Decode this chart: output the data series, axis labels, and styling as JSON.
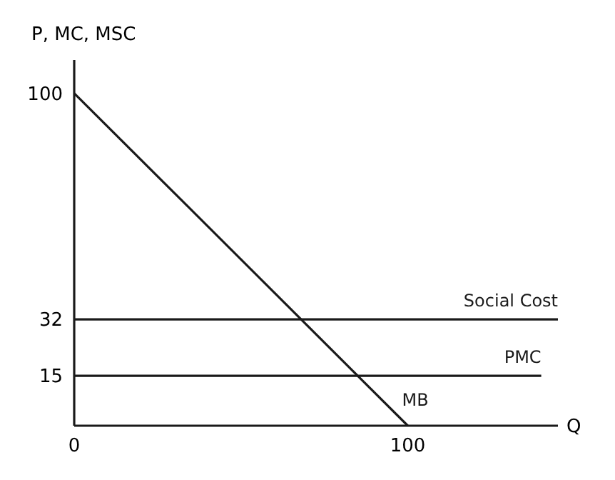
{
  "chart_data": {
    "type": "line",
    "xlabel": "Q",
    "ylabel": "P, MC, MSC",
    "xlim": [
      0,
      145
    ],
    "ylim": [
      0,
      110
    ],
    "xticks": [
      0,
      100
    ],
    "yticks": [
      15,
      32,
      100
    ],
    "series": [
      {
        "name": "MB",
        "color": "#1a1a1a",
        "x": [
          0,
          100
        ],
        "values": [
          100,
          0
        ]
      },
      {
        "name": "Social Cost",
        "color": "#1a1a1a",
        "x": [
          0,
          145
        ],
        "values": [
          32,
          32
        ]
      },
      {
        "name": "PMC",
        "color": "#1a1a1a",
        "x": [
          0,
          140
        ],
        "values": [
          15,
          15
        ]
      }
    ],
    "grid": false,
    "marker": "none",
    "line_style": "solid"
  }
}
